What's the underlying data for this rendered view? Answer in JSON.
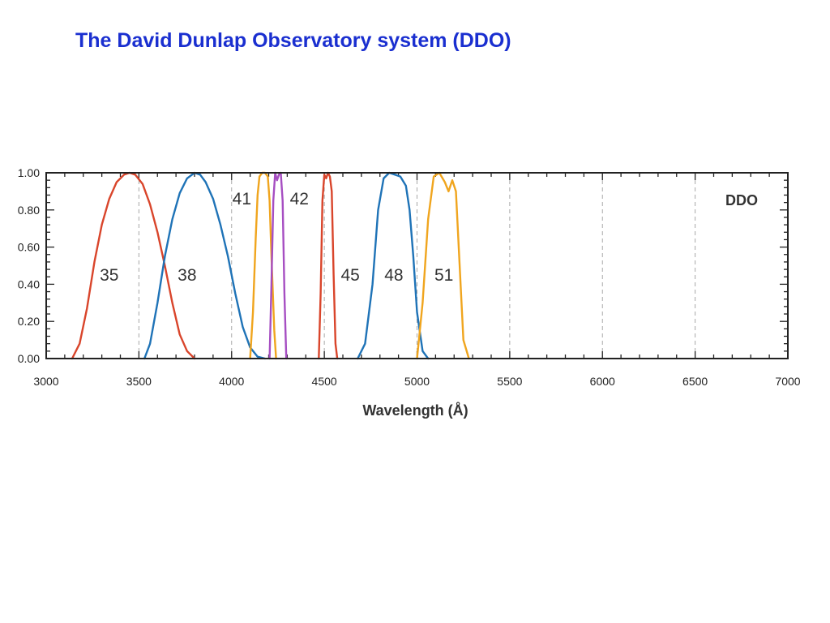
{
  "slide": {
    "title": "The David Dunlap Observatory system (DDO)"
  },
  "chart_data": {
    "type": "line",
    "title": "",
    "xlabel": "Wavelength (Å)",
    "ylabel": "",
    "xlim": [
      3000,
      7000
    ],
    "ylim": [
      0,
      1
    ],
    "x_ticks": [
      3000,
      3500,
      4000,
      4500,
      5000,
      5500,
      6000,
      6500,
      7000
    ],
    "x_tick_labels": [
      "3000",
      "3500",
      "4000",
      "4500",
      "5000",
      "5500",
      "6000",
      "6500",
      "7000"
    ],
    "y_ticks": [
      0,
      0.2,
      0.4,
      0.6,
      0.8,
      1.0
    ],
    "y_tick_labels": [
      "0.00",
      "0.20",
      "0.40",
      "0.60",
      "0.80",
      "1.00"
    ],
    "grid": "dashed vertical lines at 3500, 4000, 4500, 5000, 5500, 6000, 6500",
    "system_label": "DDO",
    "series": [
      {
        "name": "35",
        "color": "#d9452b",
        "x": [
          3140,
          3180,
          3220,
          3260,
          3300,
          3340,
          3380,
          3420,
          3450,
          3480,
          3520,
          3560,
          3600,
          3640,
          3680,
          3720,
          3760,
          3800
        ],
        "y": [
          0.0,
          0.08,
          0.27,
          0.52,
          0.72,
          0.86,
          0.95,
          0.99,
          1.0,
          0.99,
          0.94,
          0.83,
          0.68,
          0.5,
          0.3,
          0.13,
          0.04,
          0.0
        ],
        "label": "35",
        "label_x": 3340,
        "label_y": 0.45
      },
      {
        "name": "38",
        "color": "#1f73b7",
        "x": [
          3530,
          3560,
          3600,
          3640,
          3680,
          3720,
          3760,
          3800,
          3830,
          3860,
          3900,
          3940,
          3980,
          4020,
          4060,
          4100,
          4140,
          4180
        ],
        "y": [
          0.0,
          0.08,
          0.3,
          0.55,
          0.75,
          0.89,
          0.97,
          1.0,
          0.99,
          0.95,
          0.86,
          0.72,
          0.55,
          0.35,
          0.17,
          0.06,
          0.01,
          0.0
        ],
        "label": "38",
        "label_x": 3760,
        "label_y": 0.45
      },
      {
        "name": "41",
        "color": "#f0a51e",
        "x": [
          4100,
          4115,
          4130,
          4140,
          4150,
          4165,
          4180,
          4195,
          4205,
          4215,
          4230,
          4240
        ],
        "y": [
          0.0,
          0.25,
          0.65,
          0.88,
          0.98,
          1.0,
          1.0,
          0.98,
          0.85,
          0.55,
          0.15,
          0.0
        ],
        "label": "41",
        "label_x": 4055,
        "label_y": 0.86
      },
      {
        "name": "42",
        "color": "#a64ec2",
        "x": [
          4205,
          4215,
          4225,
          4235,
          4245,
          4255,
          4265,
          4275,
          4285,
          4295
        ],
        "y": [
          0.0,
          0.4,
          0.85,
          1.0,
          0.96,
          0.99,
          1.0,
          0.85,
          0.35,
          0.0
        ],
        "label": "42",
        "label_x": 4365,
        "label_y": 0.86
      },
      {
        "name": "45",
        "color": "#d9452b",
        "x": [
          4470,
          4480,
          4490,
          4500,
          4510,
          4520,
          4530,
          4540,
          4550,
          4560,
          4570
        ],
        "y": [
          0.0,
          0.35,
          0.85,
          0.99,
          0.97,
          1.0,
          0.98,
          0.9,
          0.45,
          0.08,
          0.0
        ],
        "label": "45",
        "label_x": 4640,
        "label_y": 0.45
      },
      {
        "name": "48",
        "color": "#1f73b7",
        "x": [
          4680,
          4720,
          4760,
          4790,
          4820,
          4850,
          4880,
          4910,
          4940,
          4960,
          4980,
          5000,
          5030,
          5060
        ],
        "y": [
          0.0,
          0.08,
          0.4,
          0.8,
          0.97,
          1.0,
          0.99,
          0.98,
          0.93,
          0.8,
          0.55,
          0.25,
          0.04,
          0.0
        ],
        "label": "48",
        "label_x": 4875,
        "label_y": 0.45
      },
      {
        "name": "51",
        "color": "#f0a51e",
        "x": [
          5000,
          5030,
          5060,
          5090,
          5120,
          5150,
          5170,
          5190,
          5210,
          5230,
          5250,
          5280
        ],
        "y": [
          0.0,
          0.3,
          0.75,
          0.98,
          1.0,
          0.95,
          0.9,
          0.96,
          0.9,
          0.5,
          0.1,
          0.0
        ],
        "label": "51",
        "label_x": 5145,
        "label_y": 0.45
      }
    ]
  }
}
